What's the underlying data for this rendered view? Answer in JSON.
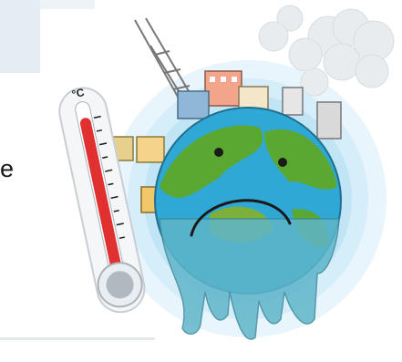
{
  "fragment_text": "e",
  "thermometer_unit": "°C",
  "colors": {
    "ocean": "#2fa8d6",
    "land": "#5aa832",
    "melt": "#5fb6c9",
    "mercury": "#e0302f",
    "smoke": "#e9ecee",
    "halo": "#cfe9f7"
  },
  "icons": [
    "thermometer-icon",
    "sad-earth-icon",
    "factory-icon",
    "smoke-cloud-icon",
    "power-tower-icon"
  ]
}
